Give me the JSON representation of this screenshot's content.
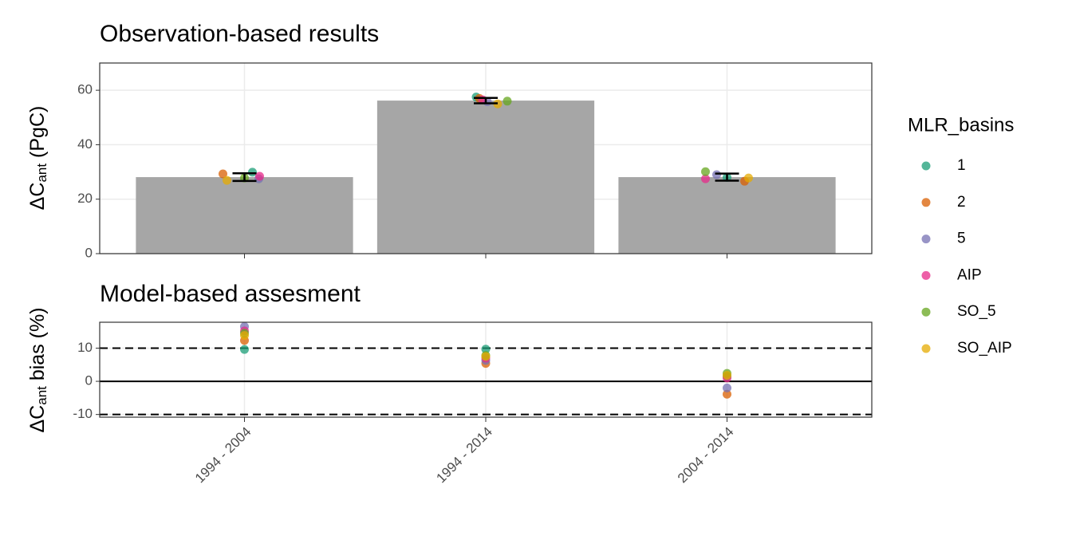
{
  "chart_data": [
    {
      "type": "bar",
      "title": "Observation-based results",
      "ylabel": {
        "main": "ΔC",
        "sub": "ant",
        "rest": " (PgC)"
      },
      "categories": [
        "1994 - 2004",
        "1994 - 2014",
        "2004 - 2014"
      ],
      "values": [
        28.1,
        56.2,
        28.1
      ],
      "errors": [
        1.4,
        1.0,
        1.3
      ],
      "color": "#a6a6a6",
      "ylim": [
        0,
        70
      ],
      "yticks": [
        0,
        20,
        40,
        60
      ],
      "grid": true,
      "legend": {
        "title": "MLR_basins",
        "position": "right"
      },
      "series": [
        {
          "name": "1",
          "color": "#1b9e77",
          "values": [
            29.9,
            57.5,
            28.0
          ]
        },
        {
          "name": "2",
          "color": "#d95f02",
          "values": [
            29.3,
            57.0,
            26.6
          ]
        },
        {
          "name": "5",
          "color": "#7570b3",
          "values": [
            27.5,
            55.8,
            29.0
          ]
        },
        {
          "name": "AIP",
          "color": "#e7298a",
          "values": [
            28.4,
            56.5,
            27.5
          ]
        },
        {
          "name": "SO_5",
          "color": "#66a61e",
          "values": [
            27.8,
            56.0,
            30.1
          ]
        },
        {
          "name": "SO_AIP",
          "color": "#e6ab02",
          "values": [
            26.9,
            55.0,
            27.8
          ]
        }
      ]
    },
    {
      "type": "scatter",
      "title": "Model-based assesment",
      "ylabel": {
        "main": "ΔC",
        "sub": "ant",
        "rest": " bias (%)"
      },
      "categories": [
        "1994 - 2004",
        "1994 - 2014",
        "2004 - 2014"
      ],
      "ylim": [
        -10.8,
        17.8
      ],
      "yticks": [
        -10,
        0,
        10
      ],
      "grid": true,
      "reference_lines": [
        {
          "value": 10,
          "style": "dashed"
        },
        {
          "value": 0,
          "style": "solid"
        },
        {
          "value": -10,
          "style": "dashed"
        }
      ],
      "series": [
        {
          "name": "1",
          "color": "#1b9e77",
          "values": [
            9.6,
            9.7,
            1.5
          ]
        },
        {
          "name": "2",
          "color": "#d95f02",
          "values": [
            12.3,
            5.4,
            -3.9
          ]
        },
        {
          "name": "5",
          "color": "#7570b3",
          "values": [
            16.5,
            6.3,
            -2.0
          ]
        },
        {
          "name": "AIP",
          "color": "#e7298a",
          "values": [
            15.2,
            7.0,
            1.0
          ]
        },
        {
          "name": "SO_5",
          "color": "#66a61e",
          "values": [
            14.5,
            7.8,
            2.4
          ]
        },
        {
          "name": "SO_AIP",
          "color": "#e6ab02",
          "values": [
            13.8,
            7.5,
            1.8
          ]
        }
      ]
    }
  ]
}
